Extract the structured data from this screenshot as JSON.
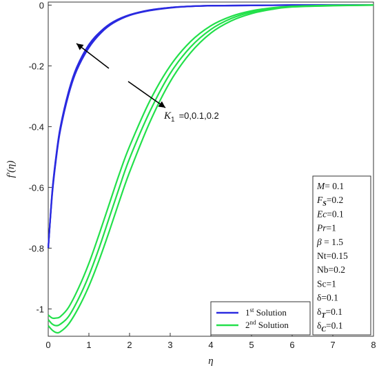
{
  "chart_data": {
    "type": "line",
    "xlabel": "η",
    "ylabel": "f′(η)",
    "xlim": [
      0,
      8
    ],
    "ylim": [
      -1.09,
      0.01
    ],
    "xticks": [
      "0",
      "1",
      "2",
      "3",
      "4",
      "5",
      "6",
      "7",
      "8"
    ],
    "yticks": [
      "0",
      "-0.2",
      "-0.4",
      "-0.6",
      "-0.8",
      "-1"
    ],
    "annotation": {
      "symbol": "K",
      "subscript": "1",
      "text": "=0,0.1,0.2"
    },
    "legend": {
      "position": "bottom-center",
      "items": [
        {
          "label": "1",
          "sup": "st",
          "rest": " Solution",
          "color": "#2a2ae0"
        },
        {
          "label": "2",
          "sup": "nd",
          "rest": " Solution",
          "color": "#22e04a"
        }
      ]
    },
    "parameters": [
      {
        "sym": "M",
        "sub": "",
        "val": "= 0.1",
        "italic": true
      },
      {
        "sym": "F",
        "sub": "S",
        "val": "=0.2",
        "italic": true
      },
      {
        "sym": "Ec",
        "sub": "",
        "val": "=0.1",
        "italic": true
      },
      {
        "sym": "Pr",
        "sub": "",
        "val": "=1",
        "italic": true
      },
      {
        "sym": "β",
        "sub": "",
        "val": " = 1.5",
        "italic": true
      },
      {
        "sym": "Nt",
        "sub": "",
        "val": "=0.15",
        "italic": false
      },
      {
        "sym": "Nb",
        "sub": "",
        "val": "=0.2",
        "italic": false
      },
      {
        "sym": "Sc",
        "sub": "",
        "val": "=1",
        "italic": false
      },
      {
        "sym": "δ",
        "sub": "",
        "val": "=0.1",
        "italic": false
      },
      {
        "sym": "δ",
        "sub": "T",
        "val": "=0.1",
        "italic": false
      },
      {
        "sym": "δ",
        "sub": "C",
        "val": "=0.1",
        "italic": false
      }
    ],
    "series": [
      {
        "name": "1st Solution",
        "color": "#2a2ae0",
        "curves": [
          {
            "x": [
              0,
              0.1,
              0.2,
              0.3,
              0.5,
              0.7,
              1.0,
              1.3,
              1.6,
              2.0,
              2.5,
              3.0,
              3.5,
              4.0,
              5.0,
              6.0,
              7.0,
              8.0
            ],
            "y": [
              -0.8,
              -0.61,
              -0.49,
              -0.4,
              -0.285,
              -0.205,
              -0.13,
              -0.085,
              -0.055,
              -0.032,
              -0.016,
              -0.008,
              -0.004,
              -0.002,
              -0.001,
              0,
              0,
              0
            ]
          },
          {
            "x": [
              0,
              0.1,
              0.2,
              0.3,
              0.5,
              0.7,
              1.0,
              1.3,
              1.6,
              2.0,
              2.5,
              3.0,
              3.5,
              4.0,
              5.0,
              6.0,
              7.0,
              8.0
            ],
            "y": [
              -0.8,
              -0.615,
              -0.495,
              -0.405,
              -0.29,
              -0.21,
              -0.135,
              -0.088,
              -0.057,
              -0.033,
              -0.017,
              -0.008,
              -0.004,
              -0.002,
              -0.001,
              0,
              0,
              0
            ]
          },
          {
            "x": [
              0,
              0.1,
              0.2,
              0.3,
              0.5,
              0.7,
              1.0,
              1.3,
              1.6,
              2.0,
              2.5,
              3.0,
              3.5,
              4.0,
              5.0,
              6.0,
              7.0,
              8.0
            ],
            "y": [
              -0.8,
              -0.62,
              -0.5,
              -0.41,
              -0.295,
              -0.215,
              -0.14,
              -0.091,
              -0.059,
              -0.034,
              -0.018,
              -0.009,
              -0.004,
              -0.002,
              -0.001,
              0,
              0,
              0
            ]
          }
        ]
      },
      {
        "name": "2nd Solution",
        "color": "#22e04a",
        "curves": [
          {
            "x": [
              0,
              0.1,
              0.2,
              0.3,
              0.5,
              0.75,
              1.0,
              1.25,
              1.5,
              1.75,
              2.0,
              2.5,
              3.0,
              3.5,
              4.0,
              4.5,
              5.0,
              5.5,
              6.0,
              7.0,
              8.0
            ],
            "y": [
              -1.02,
              -1.03,
              -1.03,
              -1.025,
              -0.995,
              -0.93,
              -0.85,
              -0.755,
              -0.655,
              -0.555,
              -0.465,
              -0.315,
              -0.2,
              -0.12,
              -0.068,
              -0.037,
              -0.019,
              -0.009,
              -0.004,
              -0.001,
              0
            ]
          },
          {
            "x": [
              0,
              0.1,
              0.2,
              0.3,
              0.5,
              0.75,
              1.0,
              1.25,
              1.5,
              1.75,
              2.0,
              2.5,
              3.0,
              3.5,
              4.0,
              4.5,
              5.0,
              5.5,
              6.0,
              7.0,
              8.0
            ],
            "y": [
              -1.035,
              -1.05,
              -1.055,
              -1.05,
              -1.025,
              -0.965,
              -0.89,
              -0.8,
              -0.7,
              -0.6,
              -0.505,
              -0.35,
              -0.225,
              -0.138,
              -0.08,
              -0.044,
              -0.023,
              -0.011,
              -0.005,
              -0.001,
              0
            ]
          },
          {
            "x": [
              0,
              0.1,
              0.2,
              0.3,
              0.5,
              0.75,
              1.0,
              1.25,
              1.5,
              1.75,
              2.0,
              2.5,
              3.0,
              3.5,
              4.0,
              4.5,
              5.0,
              5.5,
              6.0,
              7.0,
              8.0
            ],
            "y": [
              -1.055,
              -1.07,
              -1.078,
              -1.075,
              -1.05,
              -0.995,
              -0.925,
              -0.84,
              -0.745,
              -0.645,
              -0.55,
              -0.385,
              -0.252,
              -0.157,
              -0.092,
              -0.052,
              -0.028,
              -0.014,
              -0.006,
              -0.002,
              0
            ]
          }
        ]
      }
    ]
  }
}
